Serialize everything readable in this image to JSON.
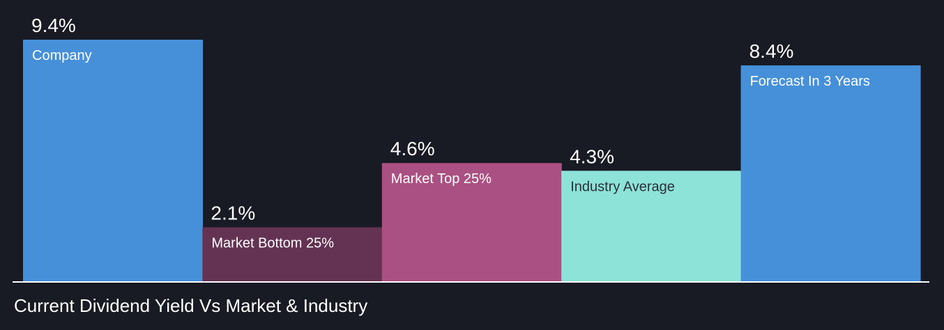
{
  "chart_data": {
    "type": "bar",
    "title": "Current Dividend Yield Vs Market & Industry",
    "unit": "%",
    "ylim": [
      0,
      9.4
    ],
    "grid": false,
    "categories": [
      "Company",
      "Market Bottom 25%",
      "Market Top 25%",
      "Industry Average",
      "Forecast In 3 Years"
    ],
    "values": [
      9.4,
      2.1,
      4.6,
      4.3,
      8.4
    ],
    "value_labels": [
      "9.4%",
      "2.1%",
      "4.6%",
      "4.3%",
      "8.4%"
    ],
    "colors": [
      "#4590d8",
      "#643354",
      "#ab5082",
      "#8ee3d8",
      "#4590d8"
    ],
    "label_colors": [
      "#ffffff",
      "#ffffff",
      "#ffffff",
      "#2b2f3a",
      "#ffffff"
    ]
  },
  "theme": {
    "background": "#181b24",
    "axis_color": "#ffffff",
    "text_color": "#ffffff"
  }
}
